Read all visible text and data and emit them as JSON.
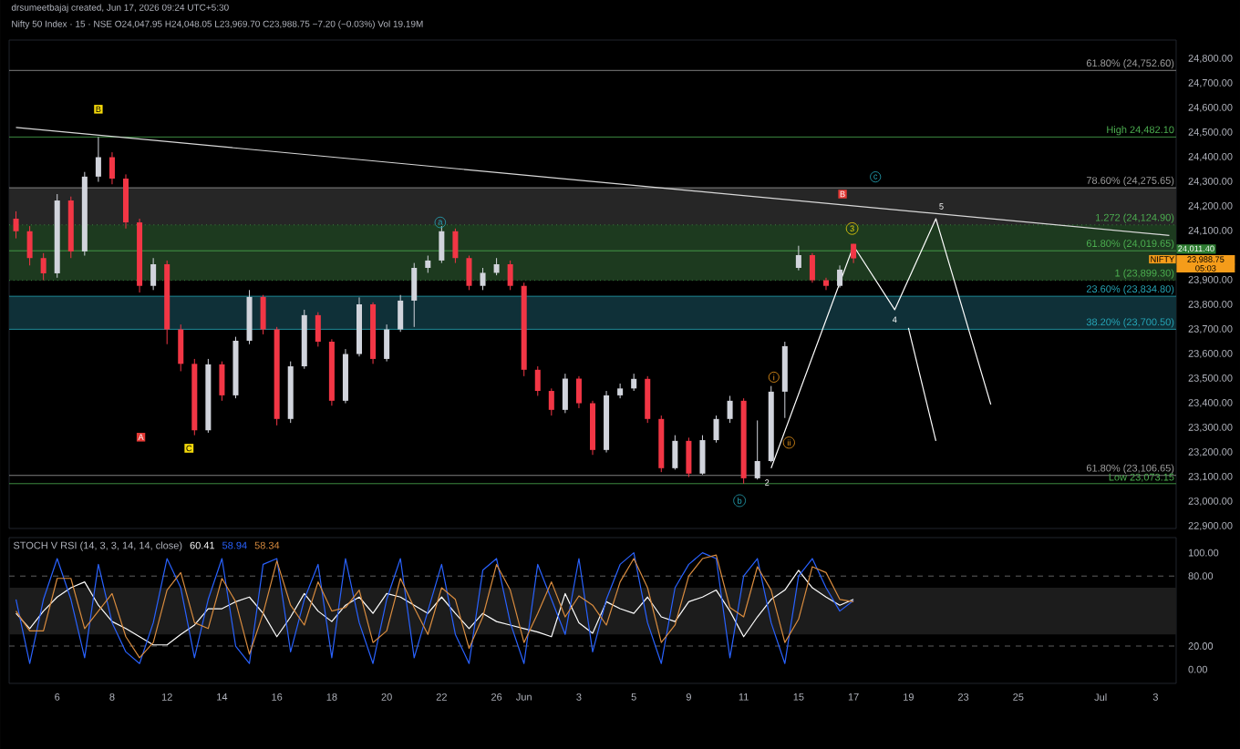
{
  "chart_data": [
    {
      "type": "candlestick",
      "title": "drsumeetbajaj created, Jun 17, 2026 09:24 UTC+5:30",
      "subtitle": "Nifty 50 Index · 15 · NSE  O24,047.95 H24,048.05 L23,969.70 C23,988.75 −7.20 (−0.03%) Vol 19.19M",
      "categories": [
        null,
        null,
        null,
        null,
        null,
        null,
        null,
        null,
        null,
        null,
        null,
        null,
        null,
        null,
        null,
        null,
        null,
        null,
        null,
        null,
        null,
        null,
        null,
        null,
        null,
        null,
        null,
        null,
        null,
        null,
        null,
        null,
        null,
        null,
        null,
        null,
        null,
        null,
        null,
        null,
        null,
        null,
        null,
        null,
        null,
        null,
        null,
        null,
        null,
        null,
        null,
        null,
        null,
        null,
        null,
        null,
        null,
        null,
        null,
        null,
        null,
        null,
        null,
        null,
        null,
        null,
        null,
        null,
        null,
        null,
        null,
        null,
        null,
        null,
        null,
        null,
        null,
        null,
        null,
        null,
        null,
        null,
        null,
        null,
        null
      ],
      "ohlc": [
        [
          24150,
          24180,
          24070,
          24099
        ],
        [
          24099,
          24120,
          23960,
          23990
        ],
        [
          23990,
          24010,
          23900,
          23928
        ],
        [
          23928,
          24250,
          23910,
          24224
        ],
        [
          24224,
          24240,
          23990,
          24017
        ],
        [
          24017,
          24340,
          24000,
          24321
        ],
        [
          24321,
          24482.1,
          24300,
          24400
        ],
        [
          24400,
          24420,
          24290,
          24313
        ],
        [
          24313,
          24330,
          24110,
          24135
        ],
        [
          24135,
          24150,
          23850,
          23877
        ],
        [
          23877,
          23990,
          23860,
          23965
        ],
        [
          23965,
          23980,
          23640,
          23700
        ],
        [
          23700,
          23720,
          23530,
          23560
        ],
        [
          23560,
          23580,
          23270,
          23290
        ],
        [
          23290,
          23580,
          23280,
          23558
        ],
        [
          23558,
          23570,
          23410,
          23432
        ],
        [
          23432,
          23670,
          23420,
          23654
        ],
        [
          23654,
          23860,
          23640,
          23832
        ],
        [
          23832,
          23840,
          23680,
          23700
        ],
        [
          23700,
          23710,
          23310,
          23336
        ],
        [
          23336,
          23570,
          23320,
          23550
        ],
        [
          23550,
          23780,
          23540,
          23758
        ],
        [
          23758,
          23770,
          23630,
          23650
        ],
        [
          23650,
          23660,
          23390,
          23410
        ],
        [
          23410,
          23620,
          23400,
          23600
        ],
        [
          23600,
          23830,
          23590,
          23802
        ],
        [
          23802,
          23810,
          23560,
          23580
        ],
        [
          23580,
          23720,
          23570,
          23700
        ],
        [
          23700,
          23840,
          23690,
          23817
        ],
        [
          23817,
          23970,
          23710,
          23950
        ],
        [
          23950,
          24000,
          23930,
          23980
        ],
        [
          23980,
          24120,
          23970,
          24099
        ],
        [
          24099,
          24110,
          23970,
          23990
        ],
        [
          23990,
          24000,
          23860,
          23877
        ],
        [
          23877,
          23950,
          23860,
          23930
        ],
        [
          23930,
          23990,
          23920,
          23965
        ],
        [
          23965,
          23980,
          23860,
          23877
        ],
        [
          23877,
          23890,
          23510,
          23536
        ],
        [
          23536,
          23550,
          23430,
          23450
        ],
        [
          23450,
          23460,
          23350,
          23373
        ],
        [
          23373,
          23520,
          23360,
          23500
        ],
        [
          23500,
          23510,
          23380,
          23400
        ],
        [
          23400,
          23410,
          23190,
          23210
        ],
        [
          23210,
          23450,
          23200,
          23432
        ],
        [
          23432,
          23480,
          23420,
          23460
        ],
        [
          23460,
          23520,
          23450,
          23499
        ],
        [
          23499,
          23510,
          23320,
          23336
        ],
        [
          23336,
          23350,
          23120,
          23136
        ],
        [
          23136,
          23270,
          23130,
          23247
        ],
        [
          23247,
          23260,
          23100,
          23114
        ],
        [
          23114,
          23270,
          23110,
          23250
        ],
        [
          23250,
          23350,
          23240,
          23336
        ],
        [
          23336,
          23430,
          23320,
          23410
        ],
        [
          23410,
          23420,
          23073.15,
          23095
        ],
        [
          23095,
          23330,
          23090,
          23165
        ],
        [
          23165,
          23470,
          23160,
          23447
        ],
        [
          23447,
          23650,
          23340,
          23632
        ],
        [
          23950,
          24040,
          23940,
          24002
        ],
        [
          24002,
          24010,
          23890,
          23900
        ],
        [
          23900,
          23910,
          23860,
          23877
        ],
        [
          23877,
          23960,
          23870,
          23943
        ],
        [
          24047.95,
          24048.05,
          23969.7,
          23988.75
        ],
        null,
        null,
        null,
        null,
        null,
        null,
        null,
        null,
        null,
        null,
        null,
        null,
        null,
        null,
        null,
        null,
        null,
        null,
        null,
        null,
        null,
        null,
        null
      ],
      "ylim": [
        22891,
        24876
      ],
      "yticks": [
        {
          "value": 22900,
          "label": "22,900.00"
        },
        {
          "value": 23000,
          "label": "23,000.00"
        },
        {
          "value": 23100,
          "label": "23,100.00"
        },
        {
          "value": 23200,
          "label": "23,200.00"
        },
        {
          "value": 23300,
          "label": "23,300.00"
        },
        {
          "value": 23400,
          "label": "23,400.00"
        },
        {
          "value": 23500,
          "label": "23,500.00"
        },
        {
          "value": 23600,
          "label": "23,600.00"
        },
        {
          "value": 23700,
          "label": "23,700.00"
        },
        {
          "value": 23800,
          "label": "23,800.00"
        },
        {
          "value": 23900,
          "label": "23,900.00"
        },
        {
          "value": 24100,
          "label": "24,100.00"
        },
        {
          "value": 24200,
          "label": "24,200.00"
        },
        {
          "value": 24300,
          "label": "24,300.00"
        },
        {
          "value": 24400,
          "label": "24,400.00"
        },
        {
          "value": 24500,
          "label": "24,500.00"
        },
        {
          "value": 24600,
          "label": "24,600.00"
        },
        {
          "value": 24700,
          "label": "24,700.00"
        },
        {
          "value": 24800,
          "label": "24,800.00"
        }
      ],
      "tick_labels": "y",
      "series": [
        {
          "type": "line",
          "color": "#d9d9d9",
          "values": [
            24521,
            null,
            null,
            null,
            null,
            null,
            null,
            null,
            null,
            null,
            null,
            null,
            null,
            null,
            null,
            null,
            null,
            null,
            null,
            null,
            null,
            null,
            null,
            null,
            null,
            null,
            null,
            null,
            null,
            null,
            null,
            null,
            null,
            null,
            null,
            null,
            null,
            null,
            null,
            null,
            null,
            null,
            null,
            null,
            null,
            null,
            null,
            null,
            null,
            null,
            null,
            null,
            null,
            null,
            null,
            null,
            null,
            null,
            null,
            null,
            null,
            null,
            null,
            null,
            null,
            null,
            null,
            null,
            null,
            null,
            null,
            null,
            null,
            null,
            null,
            null,
            null,
            null,
            null,
            null,
            null,
            null,
            null,
            null,
            24082
          ]
        },
        {
          "type": "line",
          "color": "#ffffff",
          "values": [
            null,
            null,
            null,
            null,
            null,
            null,
            null,
            null,
            null,
            null,
            null,
            null,
            null,
            null,
            null,
            null,
            null,
            null,
            null,
            null,
            null,
            null,
            null,
            null,
            null,
            null,
            null,
            null,
            null,
            null,
            null,
            null,
            null,
            null,
            null,
            null,
            null,
            null,
            null,
            null,
            null,
            null,
            null,
            null,
            null,
            null,
            null,
            null,
            null,
            null,
            null,
            null,
            null,
            null,
            null,
            23136,
            null,
            null,
            null,
            null,
            null,
            24040,
            null,
            null,
            23780,
            null,
            null,
            24150,
            null,
            null,
            null,
            23395,
            null,
            null,
            null,
            null,
            null,
            null,
            null,
            null,
            null,
            null,
            null,
            null,
            null
          ]
        },
        {
          "type": "line",
          "color": "#ffffff",
          "values": [
            null,
            null,
            null,
            null,
            null,
            null,
            null,
            null,
            null,
            null,
            null,
            null,
            null,
            null,
            null,
            null,
            null,
            null,
            null,
            null,
            null,
            null,
            null,
            null,
            null,
            null,
            null,
            null,
            null,
            null,
            null,
            null,
            null,
            null,
            null,
            null,
            null,
            null,
            null,
            null,
            null,
            null,
            null,
            null,
            null,
            null,
            null,
            null,
            null,
            null,
            null,
            null,
            null,
            null,
            null,
            null,
            null,
            null,
            null,
            null,
            null,
            null,
            null,
            null,
            null,
            23706,
            null,
            23247,
            null,
            null,
            null,
            null,
            null,
            null,
            null,
            null,
            null,
            null,
            null,
            null,
            null,
            null,
            null,
            null,
            null
          ]
        }
      ],
      "bands": [
        {
          "axis": "y",
          "from": 24019.65,
          "to": 24275.65,
          "color": "#262626"
        },
        {
          "axis": "y",
          "from": 23899.3,
          "to": 24124.9,
          "color": "#1d3a1f"
        },
        {
          "axis": "y",
          "from": 23700.5,
          "to": 23834.8,
          "color": "#0f3038"
        }
      ],
      "ref_lines": [
        {
          "axis": "y",
          "value": 24752.6,
          "label": "61.80% (24,752.60)",
          "color": "#9e9e9e"
        },
        {
          "axis": "y",
          "value": 24482.1,
          "label": "High 24,482.10",
          "color": "#4caf50"
        },
        {
          "axis": "y",
          "value": 24275.65,
          "label": "78.60% (24,275.65)",
          "color": "#9e9e9e"
        },
        {
          "axis": "y",
          "value": 24124.9,
          "label": "1.272 (24,124.90)",
          "color": "#4caf50",
          "line_style": "dotted"
        },
        {
          "axis": "y",
          "value": 24019.65,
          "label": "61.80% (24,019.65)",
          "color": "#4caf50"
        },
        {
          "axis": "y",
          "value": 23899.3,
          "label": "1 (23,899.30)",
          "color": "#4caf50",
          "line_style": "dotted"
        },
        {
          "axis": "y",
          "value": 23834.8,
          "label": "23.60% (23,834.80)",
          "color": "#26a6b8"
        },
        {
          "axis": "y",
          "value": 23700.5,
          "label": "38.20% (23,700.50)",
          "color": "#26a6b8"
        },
        {
          "axis": "y",
          "value": 23106.65,
          "label": "61.80% (23,106.65)",
          "color": "#9e9e9e"
        },
        {
          "axis": "y",
          "value": 23073.15,
          "label": "Low 23,073.15",
          "color": "#4caf50"
        }
      ],
      "annotations": [
        "B",
        "A",
        "C",
        "a",
        "b",
        "2",
        "i",
        "ii",
        "3",
        "B",
        "c",
        "4",
        "5",
        "24,011.40",
        "NIFTY",
        "23,988.75",
        "05:03"
      ]
    },
    {
      "type": "line",
      "title": "STOCH V RSI (14, 3, 3, 14, 14, close)",
      "categories": [
        null,
        null,
        null,
        "6",
        null,
        null,
        null,
        "8",
        null,
        null,
        null,
        "12",
        null,
        null,
        null,
        "14",
        null,
        null,
        null,
        "16",
        null,
        null,
        null,
        "18",
        null,
        null,
        null,
        "20",
        null,
        null,
        null,
        "22",
        null,
        null,
        null,
        "26",
        null,
        "Jun",
        null,
        null,
        null,
        "3",
        null,
        null,
        null,
        "5",
        null,
        null,
        null,
        "9",
        null,
        null,
        null,
        "11",
        null,
        null,
        null,
        "15",
        null,
        null,
        null,
        "17",
        null,
        null,
        null,
        "19",
        null,
        null,
        null,
        "23",
        null,
        null,
        null,
        "25",
        null,
        null,
        null,
        null,
        null,
        "Jul",
        null,
        null,
        null,
        "3",
        null
      ],
      "series": [
        {
          "name": "60.41",
          "color": "#ffffff",
          "values": [
            48,
            35,
            50,
            62,
            70,
            75,
            55,
            41,
            35,
            28,
            21,
            21,
            30,
            38,
            52,
            52,
            58,
            62,
            48,
            28,
            45,
            65,
            50,
            41,
            55,
            62,
            48,
            65,
            62,
            55,
            48,
            62,
            48,
            35,
            48,
            41,
            38,
            35,
            32,
            28,
            65,
            40,
            31,
            58,
            52,
            48,
            62,
            45,
            41,
            58,
            62,
            68,
            50,
            28,
            45,
            60,
            68,
            85,
            70,
            62,
            55,
            60,
            null,
            null,
            null,
            null,
            null,
            null,
            null,
            null,
            null,
            null,
            null,
            null,
            null,
            null,
            null,
            null,
            null,
            null,
            null,
            null,
            null,
            null,
            null
          ]
        },
        {
          "name": "58.94",
          "color": "#2962ff",
          "values": [
            60,
            5,
            60,
            95,
            60,
            10,
            90,
            40,
            15,
            5,
            40,
            95,
            70,
            10,
            60,
            95,
            20,
            5,
            90,
            95,
            15,
            60,
            90,
            10,
            95,
            40,
            5,
            60,
            95,
            10,
            50,
            90,
            30,
            5,
            85,
            95,
            40,
            5,
            90,
            60,
            30,
            95,
            15,
            60,
            90,
            100,
            40,
            5,
            70,
            90,
            100,
            95,
            10,
            80,
            95,
            40,
            5,
            80,
            95,
            70,
            50,
            59,
            null,
            null,
            null,
            null,
            null,
            null,
            null,
            null,
            null,
            null,
            null,
            null,
            null,
            null,
            null,
            null,
            null,
            null,
            null,
            null,
            null,
            null,
            null
          ]
        },
        {
          "name": "58.34",
          "color": "#d98c3f",
          "values": [
            50,
            33,
            33,
            78,
            78,
            35,
            50,
            65,
            28,
            10,
            23,
            68,
            83,
            40,
            35,
            78,
            58,
            13,
            48,
            93,
            55,
            38,
            75,
            50,
            53,
            68,
            23,
            33,
            78,
            53,
            30,
            70,
            60,
            18,
            45,
            90,
            68,
            23,
            48,
            75,
            45,
            63,
            55,
            38,
            75,
            95,
            70,
            23,
            38,
            80,
            95,
            98,
            53,
            45,
            88,
            68,
            23,
            43,
            88,
            83,
            60,
            58,
            null,
            null,
            null,
            null,
            null,
            null,
            null,
            null,
            null,
            null,
            null,
            null,
            null,
            null,
            null,
            null,
            null,
            null,
            null,
            null,
            null,
            null,
            null
          ]
        }
      ],
      "ylim": [
        -12,
        113
      ],
      "yticks": [
        {
          "value": 0,
          "label": "0.00"
        },
        {
          "value": 20,
          "label": "20.00"
        },
        {
          "value": 80,
          "label": "80.00"
        },
        {
          "value": 100,
          "label": "100.00"
        }
      ],
      "bands": [
        {
          "axis": "y",
          "from": 30,
          "to": 70,
          "color": "#1c1c1c"
        }
      ],
      "ref_lines": [
        {
          "axis": "y",
          "value": 20,
          "color": "#777777",
          "line_style": "dashed"
        },
        {
          "axis": "y",
          "value": 80,
          "color": "#777777",
          "line_style": "dashed"
        }
      ],
      "legend": "top left"
    }
  ]
}
